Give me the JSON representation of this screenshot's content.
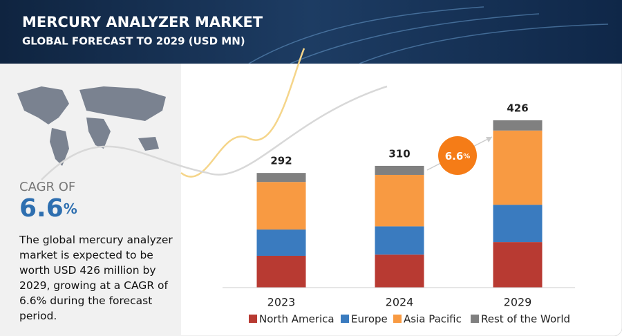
{
  "header": {
    "title": "MERCURY ANALYZER MARKET",
    "subtitle": "GLOBAL FORECAST TO 2029 (USD MN)"
  },
  "sidebar": {
    "cagr_label": "CAGR OF",
    "cagr_value": 6.6,
    "cagr_unit": "%",
    "description": "The global mercury analyzer market is expected to be worth USD 426 million by 2029, growing at a CAGR of 6.6% during the forecast period."
  },
  "chart_data": {
    "type": "stacked_bar",
    "categories": [
      "2023",
      "2024",
      "2029"
    ],
    "series": [
      {
        "name": "North America",
        "color": "#b83a32",
        "values": [
          81,
          84,
          116
        ]
      },
      {
        "name": "Europe",
        "color": "#3a7bbf",
        "values": [
          67,
          72,
          95
        ]
      },
      {
        "name": "Asia Pacific",
        "color": "#f89a42",
        "values": [
          121,
          131,
          189
        ]
      },
      {
        "name": "Rest of the World",
        "color": "#808080",
        "values": [
          23,
          23,
          26
        ]
      }
    ],
    "totals": [
      292,
      310,
      426
    ],
    "growth_label": {
      "value": 6.6,
      "unit": "%"
    },
    "legend": "bottom"
  }
}
